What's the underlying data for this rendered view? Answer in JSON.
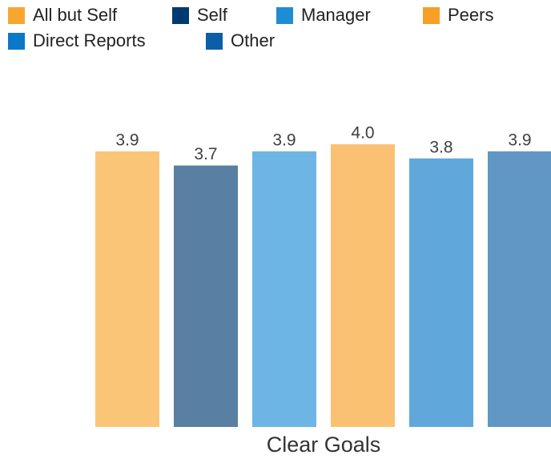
{
  "chart_data": {
    "type": "bar",
    "categories": [
      "Clear Goals"
    ],
    "series": [
      {
        "name": "All but Self",
        "color": "#f9a630",
        "values": [
          3.9
        ],
        "value_labels": [
          "3.9"
        ]
      },
      {
        "name": "Self",
        "color": "#003a70",
        "values": [
          3.7
        ],
        "value_labels": [
          "3.7"
        ]
      },
      {
        "name": "Manager",
        "color": "#1f8dd6",
        "values": [
          3.9
        ],
        "value_labels": [
          "3.9"
        ]
      },
      {
        "name": "Peers",
        "color": "#f89f28",
        "values": [
          4.0
        ],
        "value_labels": [
          "4.0"
        ]
      },
      {
        "name": "Direct Reports",
        "color": "#0a78c8",
        "values": [
          3.8
        ],
        "value_labels": [
          "3.8"
        ]
      },
      {
        "name": "Other",
        "color": "#0c5fa6",
        "values": [
          3.9
        ],
        "value_labels": [
          "3.9"
        ]
      }
    ],
    "ylim": [
      0,
      4.5
    ],
    "legend": "top-left"
  }
}
